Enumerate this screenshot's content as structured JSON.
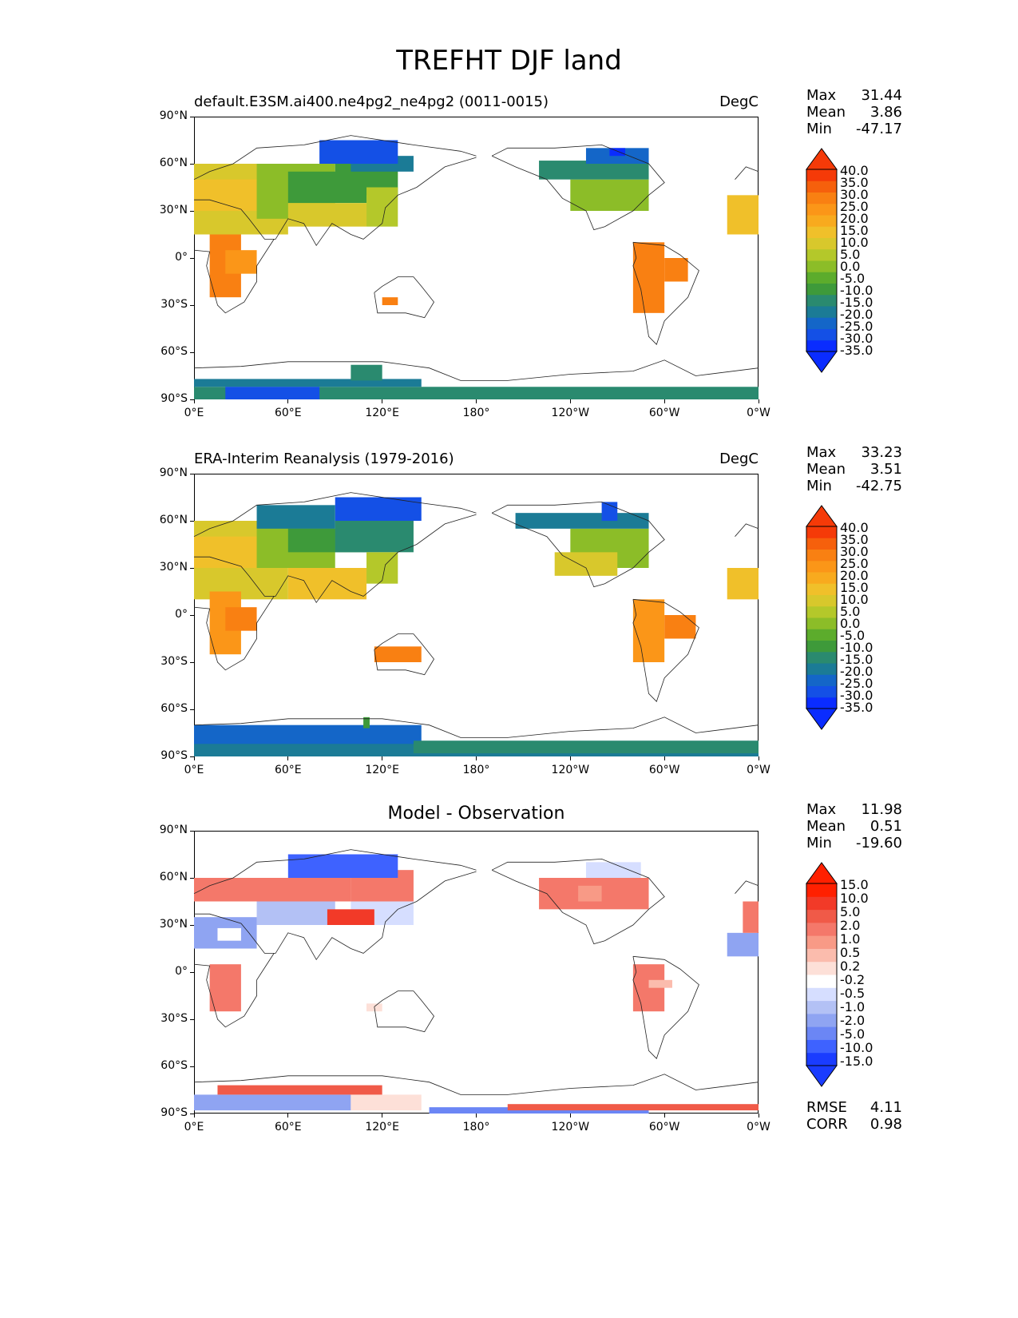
{
  "figure": {
    "title": "TREFHT DJF land",
    "panels": [
      {
        "id": "test",
        "left_title": "default.E3SM.ai400.ne4pg2_ne4pg2 (0011-0015)",
        "right_title": "DegC",
        "center_title": "",
        "stats": [
          {
            "label": "Max",
            "value": "31.44"
          },
          {
            "label": "Mean",
            "value": "3.86"
          },
          {
            "label": "Min",
            "value": "-47.17"
          }
        ],
        "colorbar_levels": [
          "40.0",
          "35.0",
          "30.0",
          "25.0",
          "20.0",
          "15.0",
          "10.0",
          "5.0",
          "0.0",
          "-5.0",
          "-10.0",
          "-15.0",
          "-20.0",
          "-25.0",
          "-30.0",
          "-35.0"
        ],
        "extra_stats": []
      },
      {
        "id": "ref",
        "left_title": "ERA-Interim Reanalysis (1979-2016)",
        "right_title": "DegC",
        "center_title": "",
        "stats": [
          {
            "label": "Max",
            "value": "33.23"
          },
          {
            "label": "Mean",
            "value": "3.51"
          },
          {
            "label": "Min",
            "value": "-42.75"
          }
        ],
        "colorbar_levels": [
          "40.0",
          "35.0",
          "30.0",
          "25.0",
          "20.0",
          "15.0",
          "10.0",
          "5.0",
          "0.0",
          "-5.0",
          "-10.0",
          "-15.0",
          "-20.0",
          "-25.0",
          "-30.0",
          "-35.0"
        ],
        "extra_stats": []
      },
      {
        "id": "diff",
        "left_title": "",
        "right_title": "",
        "center_title": "Model - Observation",
        "stats": [
          {
            "label": "Max",
            "value": "11.98"
          },
          {
            "label": "Mean",
            "value": "0.51"
          },
          {
            "label": "Min",
            "value": "-19.60"
          }
        ],
        "colorbar_levels": [
          "15.0",
          "10.0",
          "5.0",
          "2.0",
          "1.0",
          "0.5",
          "0.2",
          "-0.2",
          "-0.5",
          "-1.0",
          "-2.0",
          "-5.0",
          "-10.0",
          "-15.0"
        ],
        "extra_stats": [
          {
            "label": "RMSE",
            "value": "4.11"
          },
          {
            "label": "CORR",
            "value": "0.98"
          }
        ]
      }
    ],
    "lat_ticks": [
      "90°N",
      "60°N",
      "30°N",
      "0°",
      "30°S",
      "60°S",
      "90°S"
    ],
    "lon_ticks": [
      "0°E",
      "60°E",
      "120°E",
      "180°",
      "120°W",
      "60°W",
      "0°W"
    ]
  },
  "chart_data": [
    {
      "type": "heatmap",
      "title": "default.E3SM.ai400.ne4pg2_ne4pg2 (0011-0015)",
      "variable": "TREFHT DJF land",
      "units": "DegC",
      "xlim": [
        0,
        360
      ],
      "ylim": [
        -90,
        90
      ],
      "max": 31.44,
      "mean": 3.86,
      "min": -47.17,
      "levels": [
        -35,
        -30,
        -25,
        -20,
        -15,
        -10,
        -5,
        0,
        5,
        10,
        15,
        20,
        25,
        30,
        35,
        40
      ]
    },
    {
      "type": "heatmap",
      "title": "ERA-Interim Reanalysis (1979-2016)",
      "variable": "TREFHT DJF land",
      "units": "DegC",
      "xlim": [
        0,
        360
      ],
      "ylim": [
        -90,
        90
      ],
      "max": 33.23,
      "mean": 3.51,
      "min": -42.75,
      "levels": [
        -35,
        -30,
        -25,
        -20,
        -15,
        -10,
        -5,
        0,
        5,
        10,
        15,
        20,
        25,
        30,
        35,
        40
      ]
    },
    {
      "type": "heatmap",
      "title": "Model - Observation",
      "variable": "TREFHT DJF land difference",
      "units": "DegC",
      "xlim": [
        0,
        360
      ],
      "ylim": [
        -90,
        90
      ],
      "max": 11.98,
      "mean": 0.51,
      "min": -19.6,
      "rmse": 4.11,
      "corr": 0.98,
      "levels": [
        -15,
        -10,
        -5,
        -2,
        -1,
        -0.5,
        -0.2,
        0.2,
        0.5,
        1,
        2,
        5,
        10,
        15
      ]
    }
  ]
}
